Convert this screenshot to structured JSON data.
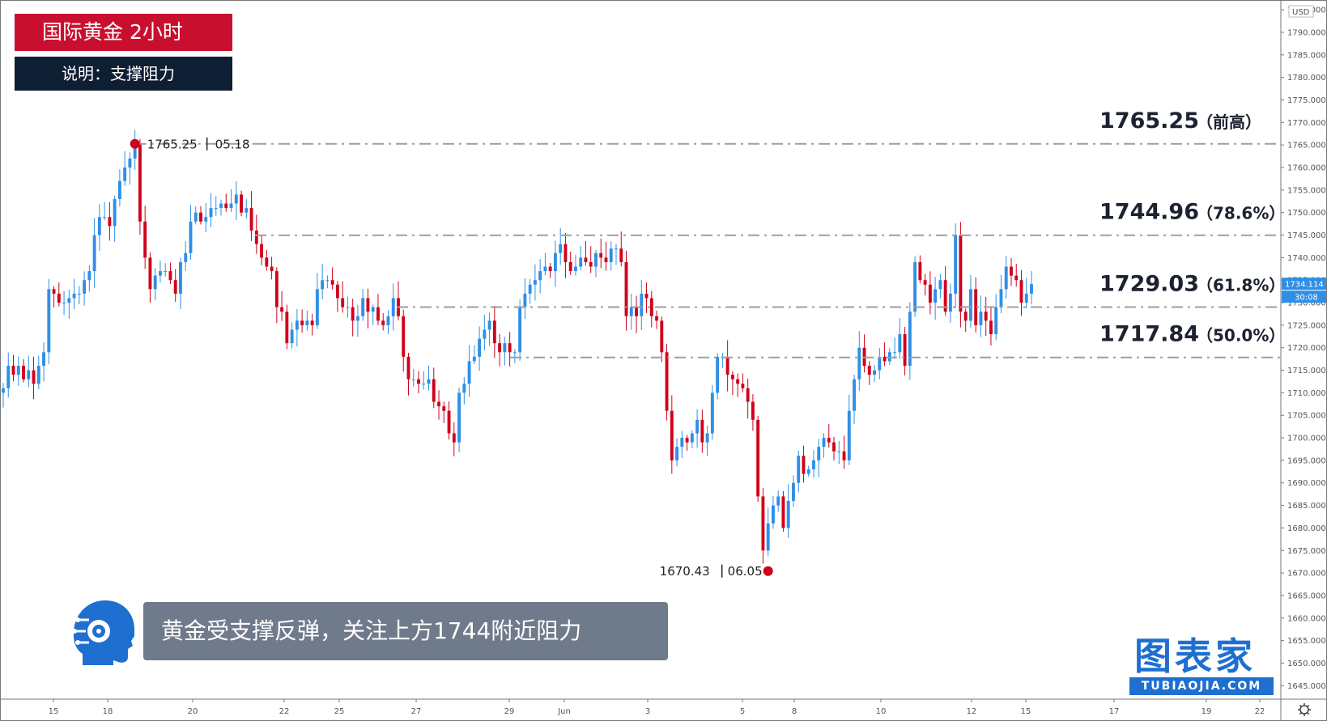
{
  "header": {
    "title": "国际黄金  2小时",
    "subtitle": "说明：支撑阻力"
  },
  "comment": "黄金受支撑反弹，关注上方1744附近阻力",
  "brand": {
    "main": "图表家",
    "sub": "TUBIAOJIA.COM"
  },
  "colors": {
    "up": "#2f8fe6",
    "down": "#d0021b",
    "level_line": "#9e9e9e",
    "title_bg": "#c8102e",
    "subtitle_bg": "#0f1f33"
  },
  "chart_data": {
    "type": "candlestick",
    "ylim": [
      1642,
      1797
    ],
    "yaxis_unit": "USD",
    "yticks": [
      1645,
      1650,
      1655,
      1660,
      1665,
      1670,
      1675,
      1680,
      1685,
      1690,
      1695,
      1700,
      1705,
      1710,
      1715,
      1720,
      1725,
      1730,
      1735,
      1740,
      1745,
      1750,
      1755,
      1760,
      1765,
      1770,
      1775,
      1780,
      1785,
      1790,
      1795
    ],
    "xticks": [
      "15",
      "18",
      "20",
      "22",
      "25",
      "27",
      "29",
      "Jun",
      "3",
      "5",
      "8",
      "10",
      "12",
      "15",
      "17",
      "19",
      "22"
    ],
    "last_price": "1734.114",
    "countdown": "30:08",
    "levels": [
      {
        "price": 1765.25,
        "value": "1765.25",
        "note": "（前高）"
      },
      {
        "price": 1744.96,
        "value": "1744.96",
        "note": "（78.6%）"
      },
      {
        "price": 1729.03,
        "value": "1729.03",
        "note": "（61.8%）"
      },
      {
        "price": 1717.84,
        "value": "1717.84",
        "note": "（50.0%）"
      }
    ],
    "annotations": [
      {
        "price": "1765.25",
        "date": "05.18"
      },
      {
        "price": "1670.43",
        "date": "06.05"
      }
    ],
    "closes": [
      1711,
      1716,
      1714,
      1716,
      1713,
      1715,
      1712,
      1716,
      1719,
      1733,
      1732,
      1730,
      1730,
      1731,
      1732,
      1732,
      1735,
      1737,
      1745,
      1749,
      1749,
      1747,
      1753,
      1757,
      1760,
      1762,
      1765.25,
      1748,
      1740,
      1733,
      1736,
      1737,
      1737,
      1735,
      1732,
      1739,
      1741,
      1748,
      1750,
      1748,
      1749,
      1751,
      1751,
      1752,
      1751,
      1752,
      1754,
      1750,
      1751,
      1746,
      1743,
      1740,
      1738,
      1737,
      1729,
      1728,
      1721,
      1724,
      1726,
      1725,
      1726,
      1725,
      1733,
      1735,
      1735,
      1734,
      1731,
      1729,
      1729,
      1726,
      1727,
      1731,
      1728,
      1729,
      1726,
      1725,
      1727,
      1731,
      1727,
      1718,
      1713,
      1713,
      1712,
      1712,
      1713,
      1708,
      1707,
      1706,
      1701,
      1699,
      1710,
      1712,
      1717,
      1718,
      1722,
      1724,
      1726,
      1721,
      1719,
      1721,
      1719,
      1719,
      1729,
      1732,
      1734,
      1735,
      1737,
      1738,
      1737,
      1741,
      1743,
      1739,
      1737,
      1738,
      1740,
      1739,
      1738,
      1741,
      1740,
      1739,
      1742,
      1742,
      1739,
      1727,
      1729,
      1727,
      1732,
      1731,
      1727,
      1726,
      1719,
      1706,
      1695,
      1698,
      1700,
      1699,
      1701,
      1704,
      1699,
      1701,
      1710,
      1718,
      1718,
      1714,
      1713,
      1712,
      1711,
      1708,
      1704,
      1687,
      1675,
      1681,
      1685,
      1687,
      1680,
      1686,
      1690,
      1696,
      1692,
      1693,
      1695,
      1698,
      1700,
      1699,
      1697,
      1697,
      1695,
      1706,
      1713,
      1720,
      1716,
      1714,
      1715,
      1718,
      1717,
      1719,
      1719,
      1723,
      1716,
      1728,
      1739,
      1735,
      1734,
      1730,
      1733,
      1735,
      1728,
      1732,
      1745,
      1728,
      1726,
      1733,
      1725,
      1728,
      1726,
      1723,
      1729,
      1733,
      1738,
      1736,
      1735,
      1730,
      1732,
      1734.114
    ]
  }
}
